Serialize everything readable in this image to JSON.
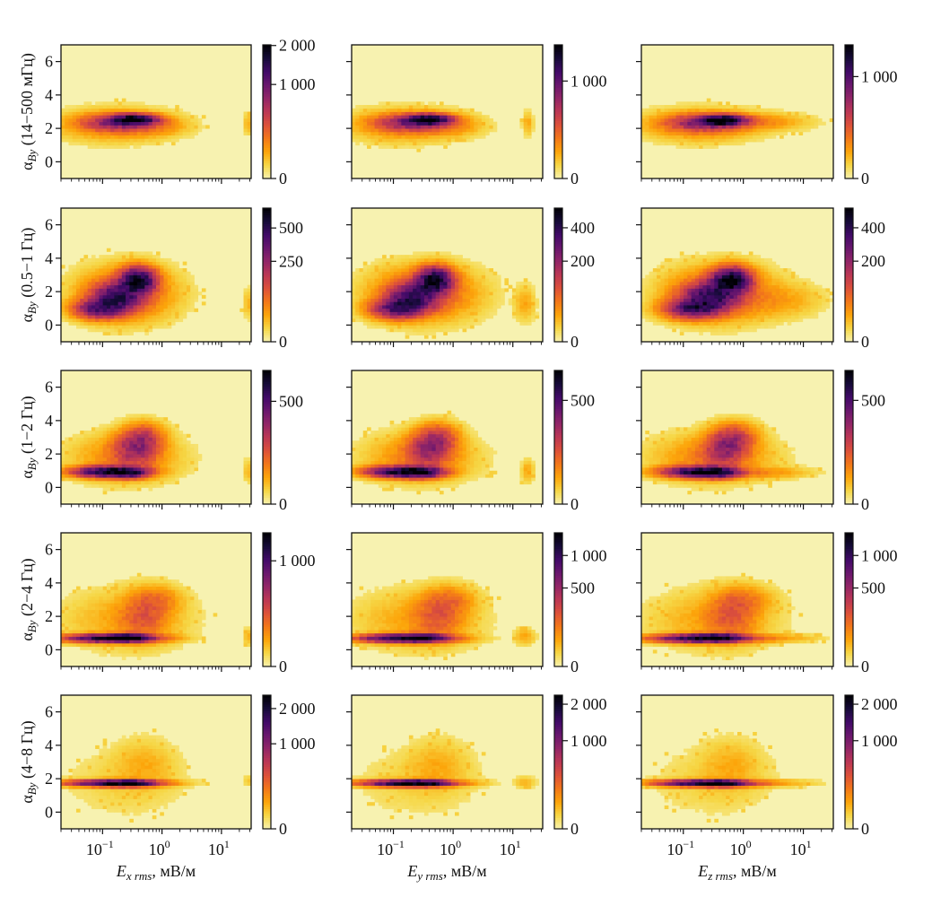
{
  "chart_data": {
    "type": "heatmap",
    "grid_rows": 5,
    "grid_cols": 3,
    "xscale": "log",
    "xlim": [
      0.02,
      31.6
    ],
    "ylim": [
      -1,
      7
    ],
    "xticks": [
      0.1,
      1,
      10
    ],
    "xtick_labels": [
      {
        "base": "10",
        "exp": "−1"
      },
      {
        "base": "10",
        "exp": "0"
      },
      {
        "base": "10",
        "exp": "1"
      }
    ],
    "yticks": [
      0,
      2,
      4,
      6
    ],
    "ytick_labels": [
      "0",
      "2",
      "4",
      "6"
    ],
    "row_ylabels": [
      {
        "sym": "α",
        "sub": "By",
        "band": " (14−500 мГц)"
      },
      {
        "sym": "α",
        "sub": "By",
        "band": " (0.5−1 Гц)"
      },
      {
        "sym": "α",
        "sub": "By",
        "band": " (1−2 Гц)"
      },
      {
        "sym": "α",
        "sub": "By",
        "band": " (2−4 Гц)"
      },
      {
        "sym": "α",
        "sub": "By",
        "band": " (4−8 Гц)"
      }
    ],
    "col_xlabels": [
      {
        "sym": "E",
        "sub": "x rms",
        "unit": ", мВ/м"
      },
      {
        "sym": "E",
        "sub": "y rms",
        "unit": ", мВ/м"
      },
      {
        "sym": "E",
        "sub": "z rms",
        "unit": ", мВ/м"
      }
    ],
    "colormap": [
      "#f7f2b0",
      "#f6d746",
      "#fca50a",
      "#f37819",
      "#dd513a",
      "#bc3754",
      "#932667",
      "#6a176e",
      "#420a68",
      "#160b39",
      "#000004"
    ],
    "color_norm": "power 0.5",
    "bins": {
      "x": 50,
      "y": 40
    },
    "panels": [
      {
        "row": 0,
        "col": 0,
        "vmax": 2020,
        "cbar_ticks": [
          0,
          1000,
          2000
        ],
        "cbar_labels": [
          "0",
          "1 000",
          "2 000"
        ],
        "components": [
          [
            -0.45,
            2.55,
            0.22,
            0.18,
            0.95
          ],
          [
            -0.75,
            2.35,
            0.35,
            0.3,
            0.35
          ],
          [
            -0.8,
            2.2,
            0.55,
            0.55,
            0.08
          ],
          [
            -0.1,
            2.2,
            0.3,
            0.35,
            0.06
          ],
          [
            1.45,
            2.3,
            0.05,
            0.4,
            0.03
          ]
        ]
      },
      {
        "row": 0,
        "col": 1,
        "vmax": 1880,
        "cbar_ticks": [
          0,
          1000
        ],
        "cbar_labels": [
          "0",
          "1 000"
        ],
        "components": [
          [
            -0.4,
            2.55,
            0.22,
            0.18,
            0.95
          ],
          [
            -0.7,
            2.35,
            0.35,
            0.3,
            0.35
          ],
          [
            -0.8,
            2.2,
            0.55,
            0.55,
            0.08
          ],
          [
            -0.05,
            2.2,
            0.3,
            0.35,
            0.06
          ],
          [
            1.25,
            2.3,
            0.05,
            0.4,
            0.04
          ]
        ]
      },
      {
        "row": 0,
        "col": 2,
        "vmax": 1720,
        "cbar_ticks": [
          0,
          1000
        ],
        "cbar_labels": [
          "0",
          "1 000"
        ],
        "components": [
          [
            -0.35,
            2.5,
            0.24,
            0.18,
            0.95
          ],
          [
            -0.65,
            2.35,
            0.38,
            0.3,
            0.35
          ],
          [
            -0.7,
            2.2,
            0.55,
            0.55,
            0.08
          ],
          [
            0.3,
            2.4,
            0.45,
            0.3,
            0.06
          ]
        ]
      },
      {
        "row": 1,
        "col": 0,
        "vmax": 690,
        "cbar_ticks": [
          0,
          250,
          500
        ],
        "cbar_labels": [
          "0",
          "250",
          "500"
        ],
        "components": [
          [
            -1.05,
            1.0,
            0.25,
            0.35,
            0.55
          ],
          [
            -0.75,
            1.7,
            0.25,
            0.5,
            0.6
          ],
          [
            -0.4,
            2.7,
            0.18,
            0.45,
            0.9
          ],
          [
            -0.6,
            1.9,
            0.45,
            0.9,
            0.15
          ],
          [
            1.45,
            1.3,
            0.05,
            0.5,
            0.03
          ]
        ]
      },
      {
        "row": 1,
        "col": 1,
        "vmax": 550,
        "cbar_ticks": [
          0,
          200,
          400
        ],
        "cbar_labels": [
          "0",
          "200",
          "400"
        ],
        "components": [
          [
            -0.95,
            1.0,
            0.25,
            0.35,
            0.55
          ],
          [
            -0.65,
            1.7,
            0.25,
            0.5,
            0.6
          ],
          [
            -0.3,
            2.7,
            0.18,
            0.45,
            0.9
          ],
          [
            -0.5,
            1.9,
            0.5,
            0.9,
            0.15
          ],
          [
            1.2,
            1.3,
            0.1,
            0.6,
            0.04
          ]
        ]
      },
      {
        "row": 1,
        "col": 2,
        "vmax": 550,
        "cbar_ticks": [
          0,
          200,
          400
        ],
        "cbar_labels": [
          "0",
          "200",
          "400"
        ],
        "components": [
          [
            -0.85,
            1.0,
            0.28,
            0.35,
            0.55
          ],
          [
            -0.55,
            1.7,
            0.28,
            0.5,
            0.6
          ],
          [
            -0.2,
            2.7,
            0.2,
            0.45,
            0.9
          ],
          [
            -0.4,
            1.9,
            0.5,
            0.9,
            0.15
          ],
          [
            0.6,
            1.5,
            0.4,
            0.6,
            0.04
          ]
        ]
      },
      {
        "row": 2,
        "col": 0,
        "vmax": 845,
        "cbar_ticks": [
          0,
          500
        ],
        "cbar_labels": [
          "0",
          "500"
        ],
        "components": [
          [
            -0.9,
            0.95,
            0.35,
            0.2,
            0.85
          ],
          [
            -0.55,
            0.9,
            0.2,
            0.2,
            0.5
          ],
          [
            -0.45,
            2.3,
            0.22,
            0.6,
            0.28
          ],
          [
            -0.3,
            3.0,
            0.2,
            0.5,
            0.2
          ],
          [
            -0.6,
            1.8,
            0.5,
            0.8,
            0.08
          ],
          [
            1.45,
            1.0,
            0.05,
            0.4,
            0.03
          ]
        ]
      },
      {
        "row": 2,
        "col": 1,
        "vmax": 830,
        "cbar_ticks": [
          0,
          500
        ],
        "cbar_labels": [
          "0",
          "500"
        ],
        "components": [
          [
            -0.85,
            0.95,
            0.35,
            0.2,
            0.85
          ],
          [
            -0.5,
            0.9,
            0.2,
            0.2,
            0.5
          ],
          [
            -0.4,
            2.3,
            0.22,
            0.6,
            0.28
          ],
          [
            -0.25,
            3.0,
            0.2,
            0.5,
            0.2
          ],
          [
            -0.55,
            1.8,
            0.5,
            0.8,
            0.08
          ],
          [
            1.25,
            1.0,
            0.06,
            0.4,
            0.04
          ]
        ]
      },
      {
        "row": 2,
        "col": 2,
        "vmax": 830,
        "cbar_ticks": [
          0,
          500
        ],
        "cbar_labels": [
          "0",
          "500"
        ],
        "components": [
          [
            -0.75,
            0.95,
            0.35,
            0.2,
            0.85
          ],
          [
            -0.4,
            0.9,
            0.2,
            0.2,
            0.5
          ],
          [
            -0.3,
            2.3,
            0.22,
            0.6,
            0.28
          ],
          [
            -0.15,
            3.0,
            0.22,
            0.5,
            0.2
          ],
          [
            -0.5,
            1.8,
            0.55,
            0.8,
            0.08
          ],
          [
            0.3,
            0.9,
            0.45,
            0.2,
            0.06
          ]
        ]
      },
      {
        "row": 3,
        "col": 0,
        "vmax": 1600,
        "cbar_ticks": [
          0,
          1000
        ],
        "cbar_labels": [
          "0",
          "1 000"
        ],
        "components": [
          [
            -0.85,
            0.7,
            0.45,
            0.15,
            0.9
          ],
          [
            -0.55,
            0.75,
            0.2,
            0.15,
            0.4
          ],
          [
            -0.3,
            2.0,
            0.25,
            0.8,
            0.12
          ],
          [
            -0.1,
            3.0,
            0.25,
            0.5,
            0.08
          ],
          [
            -0.6,
            1.8,
            0.6,
            1.0,
            0.04
          ],
          [
            1.45,
            0.8,
            0.05,
            0.3,
            0.03
          ]
        ]
      },
      {
        "row": 3,
        "col": 1,
        "vmax": 1450,
        "cbar_ticks": [
          0,
          500,
          1000
        ],
        "cbar_labels": [
          "0",
          "500",
          "1 000"
        ],
        "components": [
          [
            -0.8,
            0.7,
            0.45,
            0.15,
            0.9
          ],
          [
            -0.5,
            0.75,
            0.2,
            0.15,
            0.4
          ],
          [
            -0.25,
            2.0,
            0.25,
            0.8,
            0.12
          ],
          [
            -0.05,
            3.0,
            0.25,
            0.5,
            0.08
          ],
          [
            -0.6,
            1.8,
            0.6,
            1.0,
            0.04
          ],
          [
            1.2,
            0.8,
            0.1,
            0.3,
            0.04
          ]
        ]
      },
      {
        "row": 3,
        "col": 2,
        "vmax": 1450,
        "cbar_ticks": [
          0,
          500,
          1000
        ],
        "cbar_labels": [
          "0",
          "500",
          "1 000"
        ],
        "components": [
          [
            -0.7,
            0.7,
            0.45,
            0.15,
            0.9
          ],
          [
            -0.4,
            0.75,
            0.2,
            0.15,
            0.4
          ],
          [
            -0.2,
            2.0,
            0.25,
            0.8,
            0.12
          ],
          [
            0.0,
            3.0,
            0.28,
            0.5,
            0.08
          ],
          [
            -0.5,
            1.8,
            0.6,
            1.0,
            0.04
          ],
          [
            0.3,
            0.7,
            0.5,
            0.15,
            0.06
          ]
        ]
      },
      {
        "row": 4,
        "col": 0,
        "vmax": 2470,
        "cbar_ticks": [
          0,
          1000,
          2000
        ],
        "cbar_labels": [
          "0",
          "1 000",
          "2 000"
        ],
        "components": [
          [
            -0.8,
            1.75,
            0.45,
            0.12,
            0.9
          ],
          [
            -0.5,
            1.75,
            0.2,
            0.12,
            0.4
          ],
          [
            -0.3,
            2.8,
            0.3,
            0.9,
            0.03
          ],
          [
            -0.6,
            1.8,
            0.6,
            1.2,
            0.012
          ],
          [
            1.45,
            1.9,
            0.05,
            0.2,
            0.02
          ]
        ]
      },
      {
        "row": 4,
        "col": 1,
        "vmax": 2300,
        "cbar_ticks": [
          0,
          1000,
          2000
        ],
        "cbar_labels": [
          "0",
          "1 000",
          "2 000"
        ],
        "components": [
          [
            -0.75,
            1.75,
            0.45,
            0.12,
            0.9
          ],
          [
            -0.45,
            1.75,
            0.2,
            0.12,
            0.4
          ],
          [
            -0.25,
            2.8,
            0.3,
            0.9,
            0.03
          ],
          [
            -0.6,
            1.8,
            0.6,
            1.2,
            0.012
          ],
          [
            1.2,
            1.8,
            0.1,
            0.2,
            0.03
          ]
        ]
      },
      {
        "row": 4,
        "col": 2,
        "vmax": 2300,
        "cbar_ticks": [
          0,
          1000,
          2000
        ],
        "cbar_labels": [
          "0",
          "1 000",
          "2 000"
        ],
        "components": [
          [
            -0.65,
            1.75,
            0.45,
            0.12,
            0.9
          ],
          [
            -0.35,
            1.75,
            0.2,
            0.12,
            0.4
          ],
          [
            -0.2,
            2.8,
            0.3,
            0.9,
            0.03
          ],
          [
            -0.5,
            1.8,
            0.6,
            1.2,
            0.012
          ],
          [
            0.3,
            1.75,
            0.5,
            0.13,
            0.05
          ]
        ]
      }
    ]
  }
}
